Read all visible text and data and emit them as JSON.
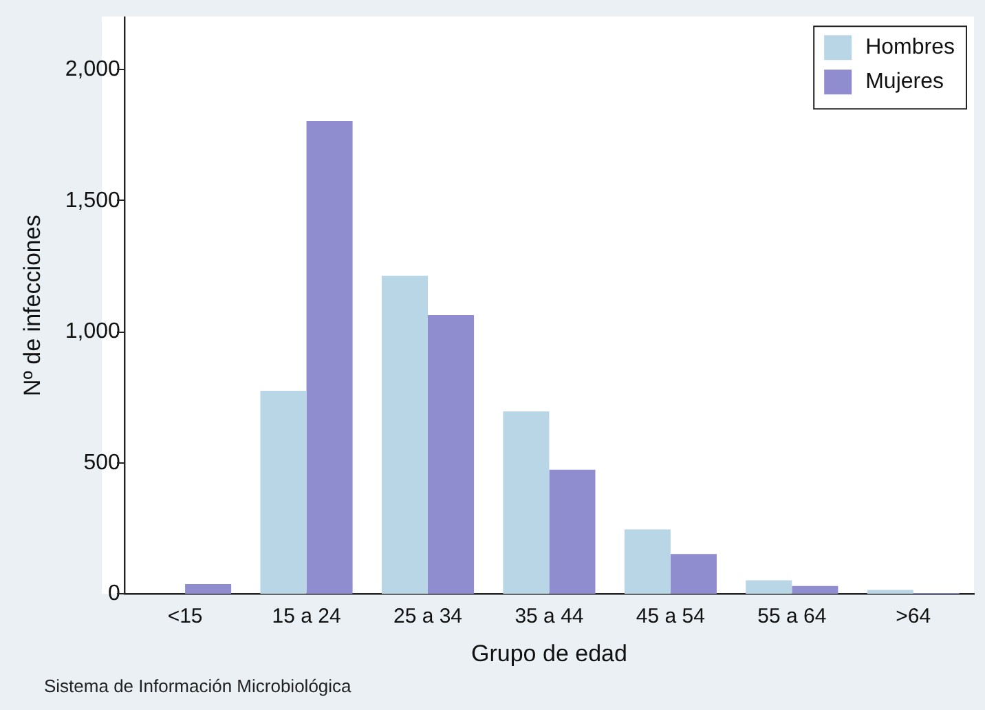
{
  "chart_data": {
    "type": "bar",
    "xlabel": "Grupo de edad",
    "ylabel": "Nº de infecciones",
    "categories": [
      "<15",
      "15 a 24",
      "25 a 34",
      "35 a 44",
      "45 a 54",
      "55 a 64",
      ">64"
    ],
    "series": [
      {
        "name": "Hombres",
        "color": "#b8d6e5",
        "values": [
          null,
          775,
          1214,
          696,
          246,
          52,
          15
        ]
      },
      {
        "name": "Mujeres",
        "color": "#8f8dcf",
        "values": [
          37,
          1804,
          1064,
          474,
          152,
          30,
          3
        ]
      }
    ],
    "ylim": [
      0,
      2200
    ],
    "yticks": [
      0,
      500,
      {
        "value": 1000,
        "label": "1,000"
      },
      {
        "value": 1500,
        "label": "1,500"
      },
      {
        "value": 2000,
        "label": "2,000"
      }
    ],
    "grid": false,
    "legend": "top right",
    "annotations": [
      "Sistema de Información Microbiológica"
    ]
  }
}
